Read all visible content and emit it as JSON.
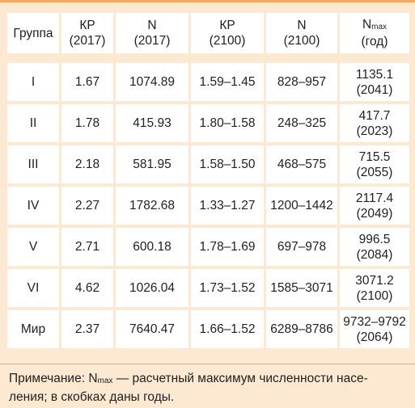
{
  "headers": {
    "group": "Группа",
    "kp2017_a": "КР",
    "kp2017_b": "(2017)",
    "n2017_a": "N",
    "n2017_b": "(2017)",
    "kp2100_a": "КР",
    "kp2100_b": "(2100)",
    "n2100_a": "N",
    "n2100_b": "(2100)",
    "nmax_base": "N",
    "nmax_sub": "max",
    "nmax_b": "(год)"
  },
  "rows": [
    {
      "group": "I",
      "kp2017": "1.67",
      "n2017": "1074.89",
      "kp2100": "1.59–1.45",
      "n2100": "828–957",
      "nmax": "1135.1",
      "year": "(2041)"
    },
    {
      "group": "II",
      "kp2017": "1.78",
      "n2017": "415.93",
      "kp2100": "1.80–1.58",
      "n2100": "248–325",
      "nmax": "417.7",
      "year": "(2023)"
    },
    {
      "group": "III",
      "kp2017": "2.18",
      "n2017": "581.95",
      "kp2100": "1.58–1.50",
      "n2100": "468–575",
      "nmax": "715.5",
      "year": "(2055)"
    },
    {
      "group": "IV",
      "kp2017": "2.27",
      "n2017": "1782.68",
      "kp2100": "1.33–1.27",
      "n2100": "1200–1442",
      "nmax": "2117.4",
      "year": "(2049)"
    },
    {
      "group": "V",
      "kp2017": "2.71",
      "n2017": "600.18",
      "kp2100": "1.78–1.69",
      "n2100": "697–978",
      "nmax": "996.5",
      "year": "(2084)"
    },
    {
      "group": "VI",
      "kp2017": "4.62",
      "n2017": "1026.04",
      "kp2100": "1.73–1.52",
      "n2100": "1585–3071",
      "nmax": "3071.2",
      "year": "(2100)"
    },
    {
      "group": "Мир",
      "kp2017": "2.37",
      "n2017": "7640.47",
      "kp2100": "1.66–1.52",
      "n2100": "6289–8786",
      "nmax": "9732–9792",
      "year": "(2064)"
    }
  ],
  "note": {
    "prefix": "Примечание: N",
    "sub": "max",
    "line1_rest": " — расчетный максимум численности насе-",
    "line2": "ления; в скобках даны годы."
  }
}
